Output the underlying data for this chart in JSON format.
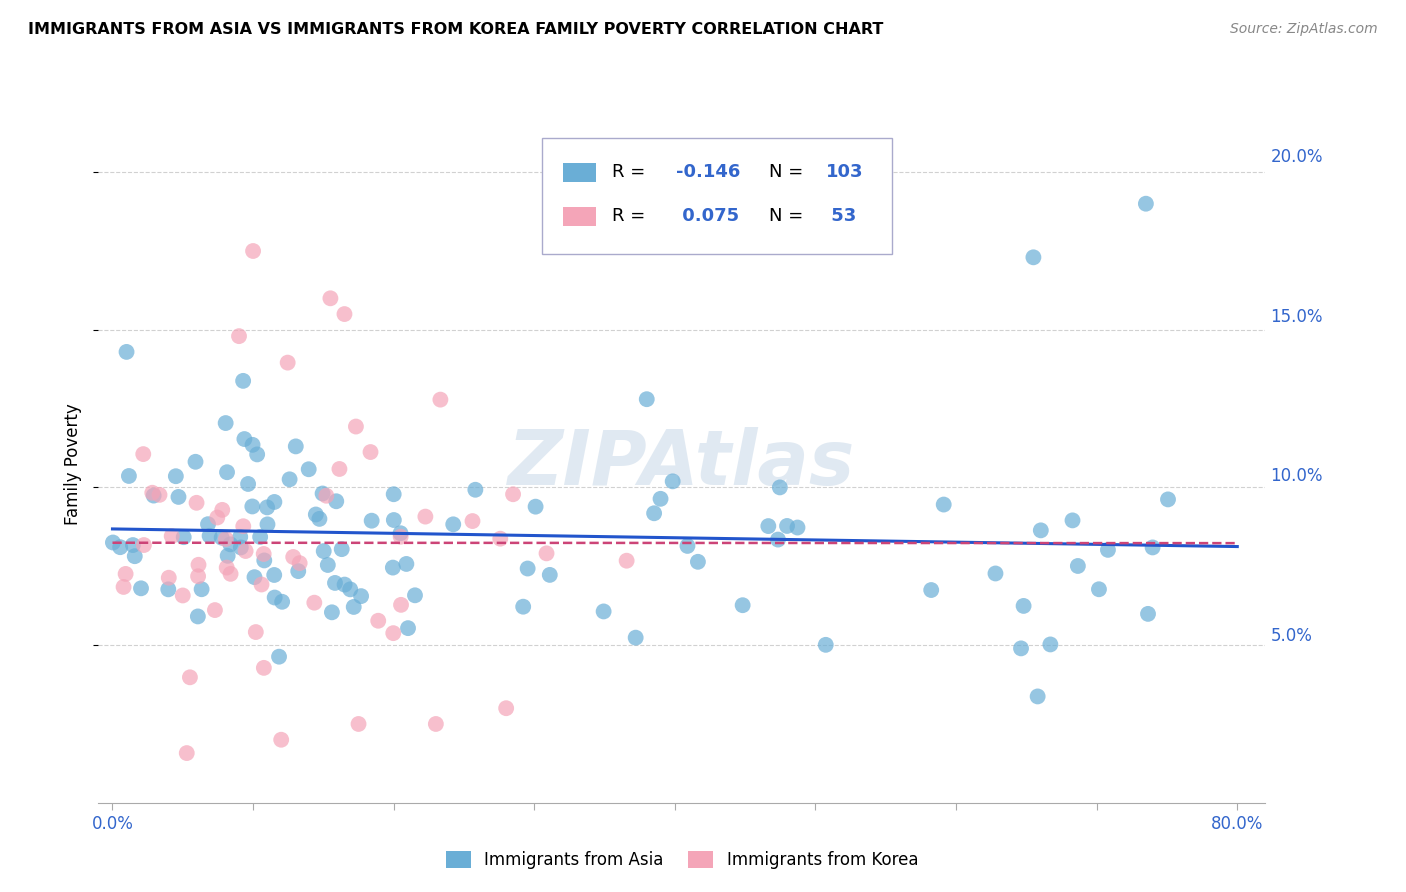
{
  "title": "IMMIGRANTS FROM ASIA VS IMMIGRANTS FROM KOREA FAMILY POVERTY CORRELATION CHART",
  "source": "Source: ZipAtlas.com",
  "xlabel_ticks": [
    "0.0%",
    "80.0%"
  ],
  "xlabel_vals": [
    0.0,
    0.8
  ],
  "ylabel_ticks": [
    "5.0%",
    "10.0%",
    "15.0%",
    "20.0%"
  ],
  "ylabel_vals": [
    0.05,
    0.1,
    0.15,
    0.2
  ],
  "xlim": [
    -0.01,
    0.82
  ],
  "ylim": [
    0.0,
    0.215
  ],
  "ylabel_label": "Family Poverty",
  "legend1_label": "Immigrants from Asia",
  "legend2_label": "Immigrants from Korea",
  "R_asia": -0.146,
  "N_asia": 103,
  "R_korea": 0.075,
  "N_korea": 53,
  "color_asia": "#6aaed6",
  "color_korea": "#f4a5b8",
  "color_text_blue": "#3366cc",
  "watermark": "ZIPAtlas"
}
